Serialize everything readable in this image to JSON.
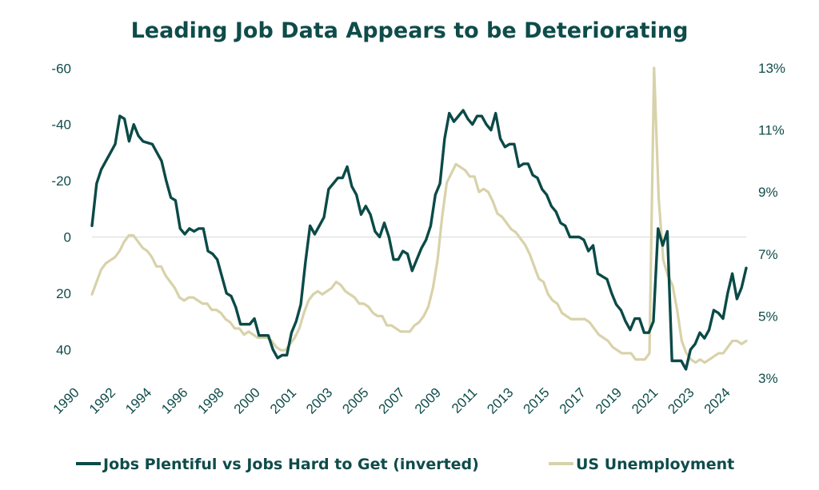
{
  "chart_data": {
    "type": "line",
    "title": "Leading Job Data Appears to be Deteriorating",
    "colors": {
      "text": "#0e4c4a",
      "primary": "#0b4a47",
      "secondary": "#d8d2aa",
      "grid": "#e3e3e3"
    },
    "x_ticks": [
      "1990",
      "1992",
      "1994",
      "1996",
      "1998",
      "2000",
      "2001",
      "2003",
      "2005",
      "2007",
      "2009",
      "2011",
      "2013",
      "2015",
      "2017",
      "2019",
      "2021",
      "2023",
      "2024"
    ],
    "y_left": {
      "ticks": [
        -60,
        -40,
        -20,
        0,
        20,
        40
      ],
      "tick_labels": [
        "-60",
        "-40",
        "-20",
        "0",
        "20",
        "40"
      ],
      "inverted": true
    },
    "y_right": {
      "ticks": [
        13,
        11,
        9,
        7,
        5,
        3
      ],
      "tick_labels": [
        "13%",
        "11%",
        "9%",
        "7%",
        "5%",
        "3%"
      ],
      "ylim": [
        3,
        13
      ]
    },
    "legend_position": "bottom",
    "series": [
      {
        "name": "Jobs Plentiful vs Jobs Hard to Get (inverted)",
        "axis": "left",
        "values": [
          -4,
          -19,
          -24,
          -27,
          -30,
          -33,
          -43,
          -42,
          -34,
          -40,
          -36,
          -34,
          -33.5,
          -33,
          -30,
          -27,
          -20,
          -14,
          -13,
          -3,
          -1,
          -3,
          -2,
          -3,
          -3,
          5,
          6,
          8,
          14,
          20,
          21,
          25,
          31,
          31,
          31,
          29,
          35,
          35,
          35,
          40,
          43,
          42,
          42,
          34,
          30,
          24,
          9,
          -4,
          -1,
          -4,
          -7,
          -17,
          -19,
          -21,
          -21,
          -25,
          -18,
          -15,
          -8,
          -11,
          -8,
          -2,
          0,
          -5,
          0,
          8,
          8,
          5,
          6,
          12,
          8,
          4,
          1,
          -4,
          -15,
          -19,
          -35,
          -44,
          -41,
          -43,
          -45,
          -42,
          -40,
          -43,
          -43,
          -40,
          -38,
          -44,
          -35,
          -32,
          -33,
          -33,
          -25,
          -26,
          -26,
          -22,
          -21,
          -17,
          -15,
          -11,
          -9,
          -5,
          -4,
          0,
          0,
          0,
          1,
          5,
          3,
          13,
          14,
          15,
          20,
          24,
          26,
          30,
          33,
          29,
          29,
          34,
          34,
          30,
          -3,
          3,
          -2,
          44,
          44,
          44,
          47,
          40,
          38,
          34,
          36,
          33,
          26,
          27,
          29,
          20,
          13,
          22,
          18,
          11
        ]
      },
      {
        "name": "US Unemployment",
        "axis": "right",
        "values": [
          5.7,
          6.1,
          6.5,
          6.7,
          6.8,
          6.9,
          7.1,
          7.4,
          7.6,
          7.6,
          7.4,
          7.2,
          7.1,
          6.9,
          6.6,
          6.6,
          6.3,
          6.1,
          5.9,
          5.6,
          5.5,
          5.6,
          5.6,
          5.5,
          5.4,
          5.4,
          5.2,
          5.2,
          5.1,
          4.9,
          4.8,
          4.6,
          4.6,
          4.4,
          4.5,
          4.4,
          4.3,
          4.3,
          4.3,
          4.2,
          4.0,
          3.9,
          3.9,
          4.1,
          4.3,
          4.6,
          5.1,
          5.5,
          5.7,
          5.8,
          5.7,
          5.8,
          5.9,
          6.1,
          6.0,
          5.8,
          5.7,
          5.6,
          5.4,
          5.4,
          5.3,
          5.1,
          5.0,
          5.0,
          4.7,
          4.7,
          4.6,
          4.5,
          4.5,
          4.5,
          4.7,
          4.8,
          5.0,
          5.3,
          5.9,
          6.8,
          8.2,
          9.3,
          9.6,
          9.9,
          9.8,
          9.7,
          9.5,
          9.5,
          9.0,
          9.1,
          9.0,
          8.7,
          8.3,
          8.2,
          8.0,
          7.8,
          7.7,
          7.5,
          7.3,
          7.0,
          6.6,
          6.2,
          6.1,
          5.7,
          5.5,
          5.4,
          5.1,
          5.0,
          4.9,
          4.9,
          4.9,
          4.9,
          4.8,
          4.6,
          4.4,
          4.3,
          4.2,
          4.0,
          3.9,
          3.8,
          3.8,
          3.8,
          3.6,
          3.6,
          3.6,
          3.8,
          13.0,
          8.8,
          6.8,
          6.3,
          6.0,
          5.2,
          4.2,
          3.8,
          3.6,
          3.5,
          3.6,
          3.5,
          3.6,
          3.7,
          3.8,
          3.8,
          4.0,
          4.2,
          4.2,
          4.1,
          4.2
        ]
      }
    ],
    "legend": [
      {
        "label": "Jobs Plentiful vs Jobs Hard to Get (inverted)"
      },
      {
        "label": "US Unemployment"
      }
    ]
  }
}
